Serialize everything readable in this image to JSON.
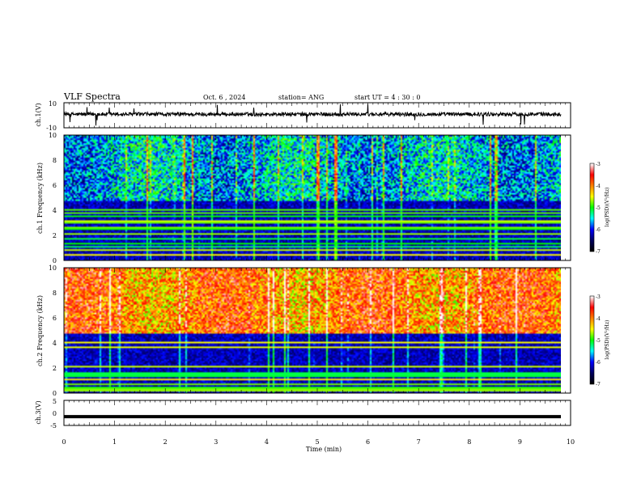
{
  "header": {
    "title": "VLF Spectra",
    "date": "Oct. 6 , 2024",
    "station": "station= ANG",
    "start": "start UT = 4 : 30 : 0"
  },
  "chart_data": [
    {
      "type": "line",
      "ylabel": "ch.1(V)",
      "ylim": [
        -10,
        10
      ],
      "yticks": [
        "10",
        "-10"
      ],
      "xlim": [
        0,
        10
      ],
      "note": "noisy waveform around ~0 V (slightly positive) with occasional spikes",
      "series": [
        {
          "level": 0.8,
          "color": "#000000"
        }
      ]
    },
    {
      "type": "heatmap",
      "ylabel": "ch.1 Frequency (kHz)",
      "ylim": [
        0,
        10
      ],
      "yticks": [
        "0",
        "2",
        "4",
        "6",
        "8",
        "10"
      ],
      "xlim": [
        0,
        10
      ],
      "colorbar": {
        "label": "log(PSD)(V²/Hz)",
        "ticks": [
          "-3",
          "-4",
          "-5",
          "-6",
          "-7"
        ],
        "range": [
          -7,
          -3
        ]
      },
      "palette": [
        "#000000",
        "#000060",
        "#0000ff",
        "#00ffff",
        "#00ff00",
        "#ffff00",
        "#ff8000",
        "#ff0000",
        "#ffffff"
      ],
      "cutoff_khz": 4.7,
      "intensity": 0.35
    },
    {
      "type": "heatmap",
      "ylabel": "ch.2 Frequency (kHz)",
      "ylim": [
        0,
        10
      ],
      "yticks": [
        "0",
        "2",
        "4",
        "6",
        "8",
        "10"
      ],
      "xlim": [
        0,
        10
      ],
      "colorbar": {
        "label": "log(PSD)(V²/Hz)",
        "ticks": [
          "-3",
          "-4",
          "-5",
          "-6",
          "-7"
        ],
        "range": [
          -7,
          -3
        ]
      },
      "palette": [
        "#000000",
        "#000060",
        "#0000ff",
        "#00ffff",
        "#00ff00",
        "#ffff00",
        "#ff8000",
        "#ff0000",
        "#ffffff"
      ],
      "cutoff_khz": 4.7,
      "intensity": 0.75
    },
    {
      "type": "line",
      "ylabel": "ch.3(V)",
      "ylim": [
        -5,
        5
      ],
      "yticks": [
        "5",
        "0",
        "-5"
      ],
      "xlim": [
        0,
        10
      ],
      "xlabel": "Time (min)",
      "xticks": [
        "0",
        "1",
        "2",
        "3",
        "4",
        "5",
        "6",
        "7",
        "8",
        "9",
        "10"
      ],
      "series": [
        {
          "level": -1.5,
          "color": "#000000"
        }
      ]
    }
  ]
}
